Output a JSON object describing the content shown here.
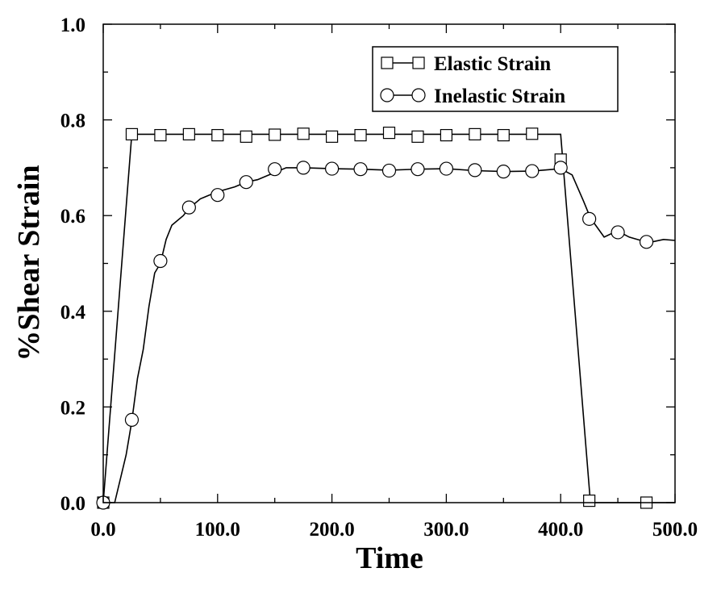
{
  "chart_data": {
    "type": "line",
    "title": "",
    "xlabel": "Time",
    "ylabel": "%Shear Strain",
    "xlim": [
      0,
      500
    ],
    "ylim": [
      0,
      1
    ],
    "x_ticks": [
      0,
      100,
      200,
      300,
      400,
      500
    ],
    "x_tick_labels": [
      "0.0",
      "100.0",
      "200.0",
      "300.0",
      "400.0",
      "500.0"
    ],
    "y_ticks": [
      0,
      0.2,
      0.4,
      0.6,
      0.8,
      1.0
    ],
    "y_tick_labels": [
      "0.0",
      "0.2",
      "0.4",
      "0.6",
      "0.8",
      "1.0"
    ],
    "grid": false,
    "legend_position": "top-right",
    "series": [
      {
        "name": "Elastic Strain",
        "marker": "square",
        "line": [
          [
            0,
            0
          ],
          [
            25,
            0.77
          ],
          [
            400,
            0.77
          ],
          [
            426,
            0.0
          ],
          [
            500,
            0.0
          ]
        ],
        "markers": [
          [
            0,
            0.0
          ],
          [
            25,
            0.77
          ],
          [
            50,
            0.768
          ],
          [
            75,
            0.77
          ],
          [
            100,
            0.768
          ],
          [
            125,
            0.765
          ],
          [
            150,
            0.769
          ],
          [
            175,
            0.771
          ],
          [
            200,
            0.765
          ],
          [
            225,
            0.768
          ],
          [
            250,
            0.773
          ],
          [
            275,
            0.765
          ],
          [
            300,
            0.768
          ],
          [
            325,
            0.77
          ],
          [
            350,
            0.768
          ],
          [
            375,
            0.771
          ],
          [
            400,
            0.717
          ],
          [
            425,
            0.004
          ],
          [
            475,
            0.0
          ]
        ]
      },
      {
        "name": "Inelastic Strain",
        "marker": "circle",
        "line": [
          [
            0,
            0
          ],
          [
            10,
            0
          ],
          [
            15,
            0.05
          ],
          [
            20,
            0.1
          ],
          [
            25,
            0.17
          ],
          [
            30,
            0.26
          ],
          [
            35,
            0.32
          ],
          [
            40,
            0.41
          ],
          [
            45,
            0.48
          ],
          [
            50,
            0.5
          ],
          [
            55,
            0.55
          ],
          [
            60,
            0.58
          ],
          [
            70,
            0.6
          ],
          [
            75,
            0.615
          ],
          [
            85,
            0.635
          ],
          [
            100,
            0.65
          ],
          [
            115,
            0.66
          ],
          [
            125,
            0.67
          ],
          [
            135,
            0.675
          ],
          [
            150,
            0.69
          ],
          [
            160,
            0.7
          ],
          [
            175,
            0.7
          ],
          [
            200,
            0.698
          ],
          [
            225,
            0.697
          ],
          [
            250,
            0.695
          ],
          [
            275,
            0.697
          ],
          [
            300,
            0.698
          ],
          [
            325,
            0.694
          ],
          [
            350,
            0.692
          ],
          [
            375,
            0.693
          ],
          [
            400,
            0.698
          ],
          [
            410,
            0.685
          ],
          [
            420,
            0.63
          ],
          [
            426,
            0.595
          ],
          [
            432,
            0.575
          ],
          [
            438,
            0.555
          ],
          [
            445,
            0.563
          ],
          [
            452,
            0.565
          ],
          [
            460,
            0.555
          ],
          [
            470,
            0.548
          ],
          [
            480,
            0.545
          ],
          [
            490,
            0.55
          ],
          [
            500,
            0.548
          ]
        ],
        "markers": [
          [
            0,
            0.0
          ],
          [
            25,
            0.173
          ],
          [
            50,
            0.505
          ],
          [
            75,
            0.617
          ],
          [
            100,
            0.643
          ],
          [
            125,
            0.67
          ],
          [
            150,
            0.697
          ],
          [
            175,
            0.7
          ],
          [
            200,
            0.698
          ],
          [
            225,
            0.697
          ],
          [
            250,
            0.694
          ],
          [
            275,
            0.697
          ],
          [
            300,
            0.698
          ],
          [
            325,
            0.695
          ],
          [
            350,
            0.692
          ],
          [
            375,
            0.693
          ],
          [
            400,
            0.7
          ],
          [
            425,
            0.593
          ],
          [
            450,
            0.565
          ],
          [
            475,
            0.545
          ]
        ]
      }
    ]
  }
}
